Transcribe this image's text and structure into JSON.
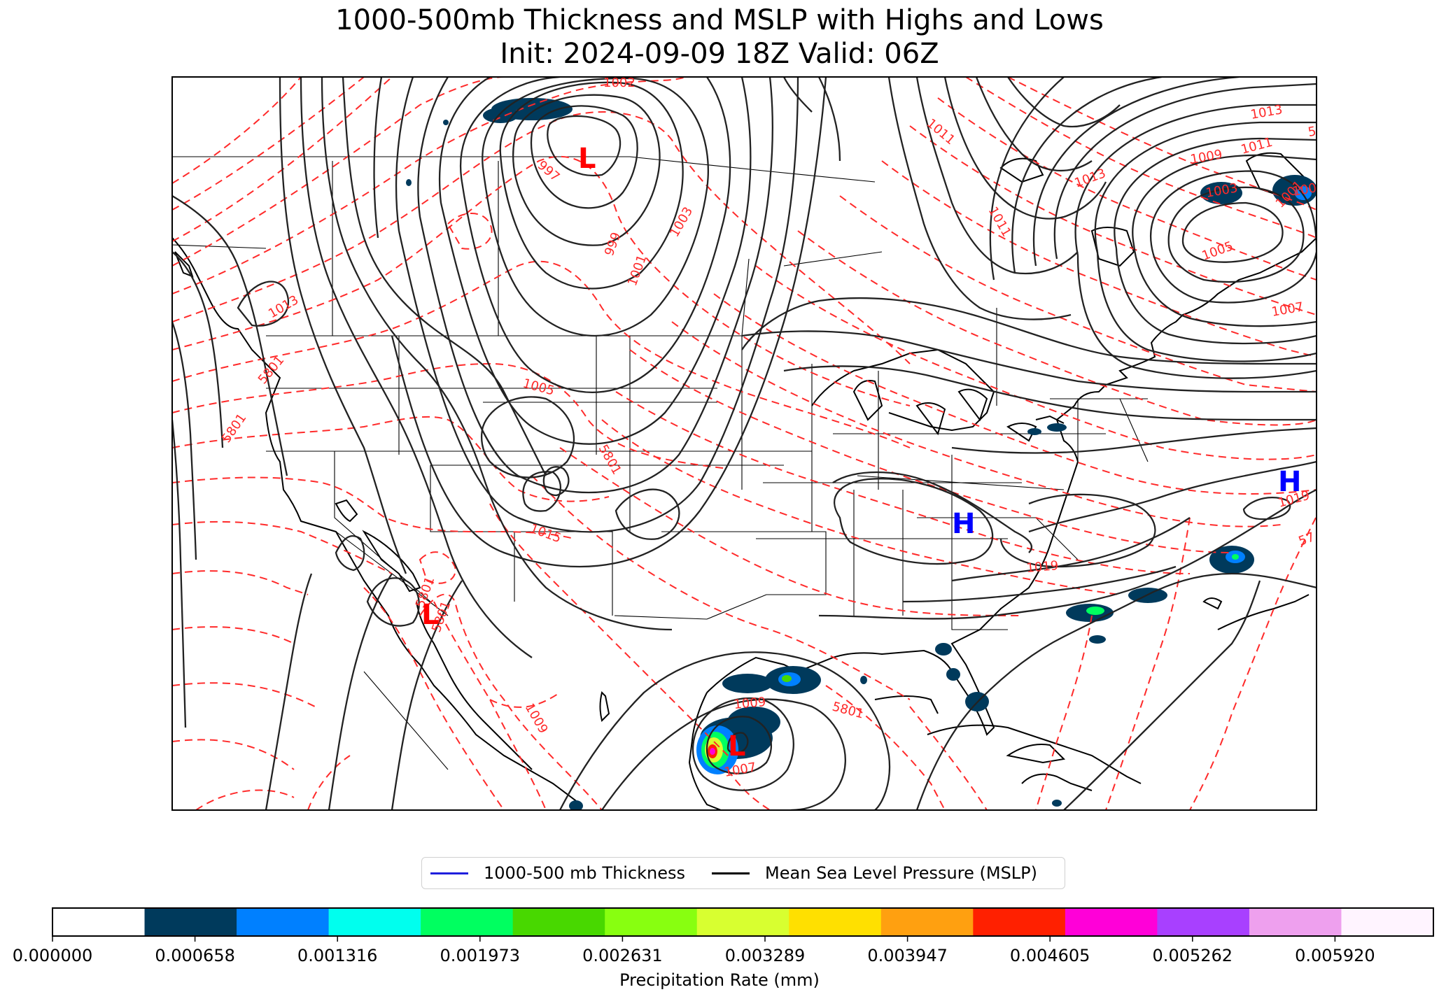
{
  "title": "1000-500mb Thickness and MSLP with Highs and Lows",
  "subtitle": "Init: 2024-09-09 18Z    Valid: 06Z",
  "legend": [
    {
      "label": "1000-500 mb Thickness",
      "color": "#1f1fdd"
    },
    {
      "label": "Mean Sea Level Pressure (MSLP)",
      "color": "#000000"
    }
  ],
  "colorbar": {
    "label": "Precipitation Rate (mm)",
    "ticks": [
      "0.000000",
      "0.000658",
      "0.001316",
      "0.001973",
      "0.002631",
      "0.003289",
      "0.003947",
      "0.004605",
      "0.005262",
      "0.005920"
    ],
    "colors": [
      "#ffffff",
      "#003a5c",
      "#0080ff",
      "#00ffee",
      "#00ff60",
      "#48d800",
      "#88ff10",
      "#d8ff30",
      "#ffe000",
      "#ffa010",
      "#ff2000",
      "#ff00d8",
      "#a840ff",
      "#eea0ee",
      "#fff4ff"
    ]
  },
  "pressure_centers": [
    {
      "letter": "L",
      "color": "#ff0000"
    },
    {
      "letter": "L",
      "color": "#ff0000"
    },
    {
      "letter": "L",
      "color": "#ff0000"
    },
    {
      "letter": "H",
      "color": "#0000ff"
    },
    {
      "letter": "H",
      "color": "#0000ff"
    }
  ],
  "contour_labels": [
    "1002",
    "997",
    "999",
    "1001",
    "1003",
    "1013",
    "1013",
    "1011",
    "1009",
    "1003",
    "1001",
    "1005",
    "1005",
    "1015",
    "5801",
    "1007",
    "1019",
    "1019",
    "5801",
    "1009",
    "1009",
    "1007",
    "5801",
    "5801",
    "1011",
    "1011",
    "5801",
    "1013",
    "5801",
    "1009",
    "5801",
    "57"
  ]
}
